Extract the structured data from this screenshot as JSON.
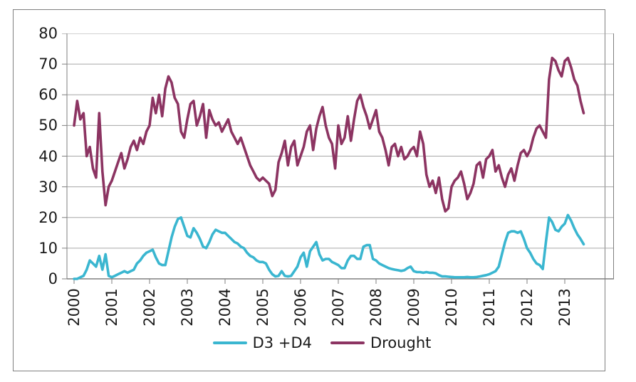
{
  "chart_data": {
    "type": "line",
    "title": "",
    "xlabel": "",
    "ylabel": "",
    "grid": "horizontal",
    "legend_position": "bottom",
    "ylim": [
      0,
      80
    ],
    "y_ticks": [
      "0",
      "10",
      "20",
      "30",
      "40",
      "50",
      "60",
      "70",
      "80"
    ],
    "x_ticks": [
      "2000",
      "2001",
      "2002",
      "2003",
      "2004",
      "2005",
      "2006",
      "2007",
      "2008",
      "2009",
      "2010",
      "2011",
      "2012",
      "2013"
    ],
    "x_start_year": 2000,
    "x_step": "monthly",
    "axis_color": "#7f7f7f",
    "gridline_color": "#a6a6a6",
    "series": [
      {
        "name": "D3 +D4",
        "color": "#3ab6d0",
        "values": [
          0,
          0,
          0.5,
          1,
          3,
          6,
          5,
          4,
          7.5,
          3,
          8,
          1,
          0.5,
          1,
          1.5,
          2,
          2.5,
          2,
          2.5,
          3,
          5,
          6,
          7.5,
          8.5,
          9,
          9.5,
          7,
          5,
          4.5,
          4.5,
          9,
          13.5,
          17,
          19.5,
          20,
          17,
          14,
          13.5,
          16.5,
          15,
          13,
          10.5,
          10,
          12,
          14.5,
          16,
          15.5,
          15,
          15,
          14,
          13,
          12,
          11.5,
          10.5,
          10,
          8.5,
          7.5,
          7,
          6,
          5.5,
          5.5,
          5,
          3,
          1.5,
          0.8,
          1,
          2.5,
          1,
          0.8,
          1,
          2.5,
          4,
          7,
          8.5,
          4,
          9,
          10.5,
          12,
          8,
          6,
          6.5,
          6.5,
          5.5,
          5,
          4.5,
          3.5,
          3.5,
          6,
          7.5,
          7.5,
          6.5,
          6.5,
          10.5,
          11,
          11,
          6.5,
          6,
          5,
          4.5,
          4,
          3.5,
          3.2,
          3,
          2.8,
          2.6,
          2.8,
          3.5,
          4,
          2.5,
          2.2,
          2.2,
          2,
          2.2,
          2,
          2,
          1.8,
          1.2,
          0.8,
          0.8,
          0.7,
          0.6,
          0.5,
          0.5,
          0.5,
          0.5,
          0.6,
          0.5,
          0.5,
          0.6,
          0.8,
          1,
          1.2,
          1.5,
          2,
          2.5,
          4,
          8,
          12,
          15,
          15.5,
          15.5,
          15,
          15.5,
          13,
          10,
          8.5,
          6.5,
          5,
          4.5,
          3.2,
          12,
          20,
          18.5,
          16,
          15.5,
          17,
          18,
          20.8,
          19,
          16.5,
          14.5,
          13,
          11.3
        ]
      },
      {
        "name": "Drought",
        "color": "#8c3462",
        "values": [
          50,
          58,
          52,
          54,
          40,
          43,
          36,
          33,
          54,
          35,
          24,
          30,
          32,
          35,
          38,
          41,
          36,
          39,
          43,
          45,
          42,
          46,
          44,
          48,
          50,
          59,
          54,
          60,
          53,
          62,
          66,
          64,
          59,
          57,
          48,
          46,
          52,
          57,
          58,
          50,
          53,
          57,
          46,
          55,
          52,
          50,
          51,
          48,
          50,
          52,
          48,
          46,
          44,
          46,
          43,
          40,
          37,
          35,
          33,
          32,
          33,
          32,
          31,
          27,
          29,
          38,
          41,
          45,
          37,
          43,
          45,
          37,
          40,
          43,
          48,
          50,
          42,
          49,
          53,
          56,
          50,
          46,
          44,
          36,
          50,
          44,
          46,
          53,
          45,
          52,
          58,
          60,
          56,
          53,
          49,
          52,
          55,
          48,
          46,
          42,
          37,
          43,
          44,
          40,
          43,
          39,
          40,
          42,
          43,
          40,
          48,
          44,
          34,
          30,
          32,
          28,
          33,
          26,
          22,
          23,
          30,
          32,
          33,
          35,
          31,
          26,
          28,
          31,
          37,
          38,
          33,
          39,
          40,
          42,
          35,
          37,
          33,
          30,
          34,
          36,
          32,
          37,
          41,
          42,
          40,
          42,
          46,
          49,
          50,
          48,
          46,
          65,
          72,
          71,
          68,
          66,
          71,
          72,
          69,
          65,
          63,
          58,
          54
        ]
      }
    ]
  }
}
